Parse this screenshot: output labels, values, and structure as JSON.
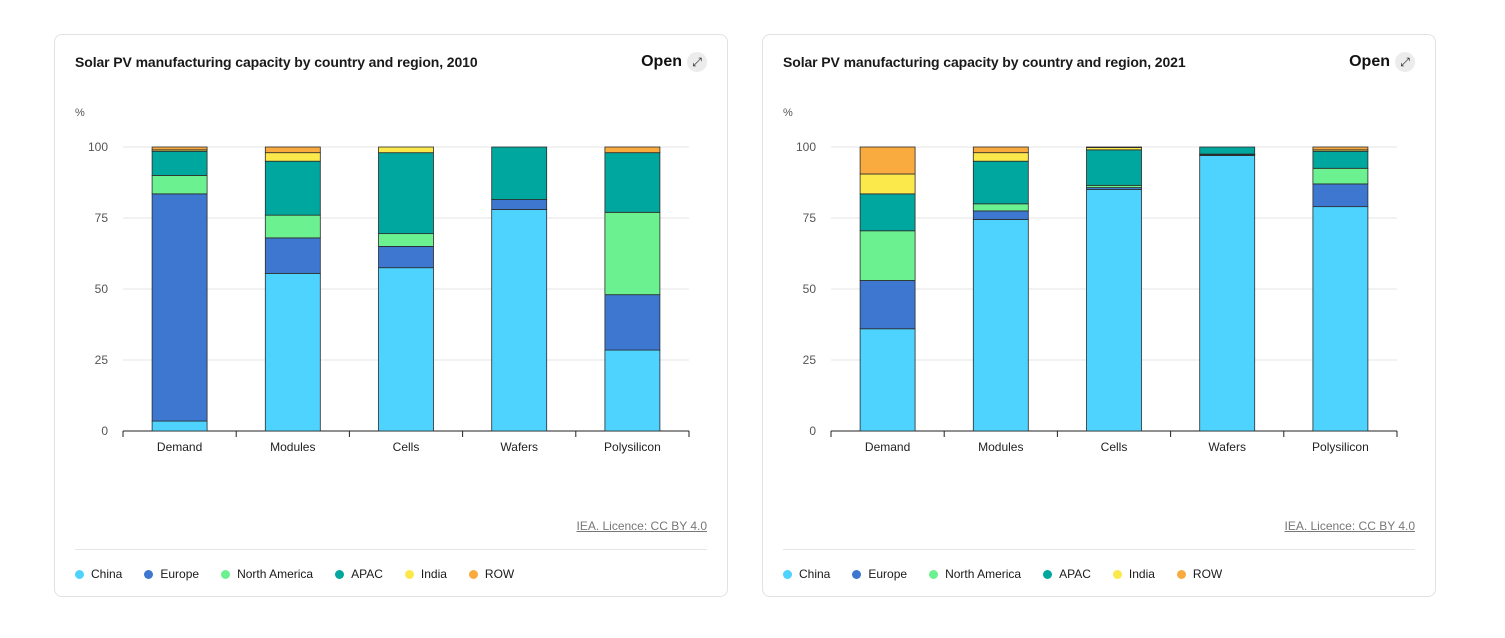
{
  "colors": {
    "China": "#4dd3fd",
    "Europe": "#3e77d0",
    "North America": "#6cf191",
    "APAC": "#00a79e",
    "India": "#fbe84b",
    "ROW": "#f9ab3f"
  },
  "open_label": "Open",
  "open_icon": "expand-arrows-icon",
  "legend": [
    "China",
    "Europe",
    "North America",
    "APAC",
    "India",
    "ROW"
  ],
  "chart_data": [
    {
      "type": "bar",
      "stacked": true,
      "title": "Solar PV manufacturing capacity by country and region, 2010",
      "ylabel": "%",
      "ylim": [
        0,
        100
      ],
      "yticks": [
        0,
        25,
        50,
        75,
        100
      ],
      "grid": true,
      "legend_position": "bottom",
      "source": "IEA. Licence: CC BY 4.0",
      "categories": [
        "Demand",
        "Modules",
        "Cells",
        "Wafers",
        "Polysilicon"
      ],
      "series": [
        {
          "name": "China",
          "values": [
            3.5,
            55.5,
            57.5,
            78,
            28.5
          ]
        },
        {
          "name": "Europe",
          "values": [
            80,
            12.5,
            7.5,
            3.5,
            19.5
          ]
        },
        {
          "name": "North America",
          "values": [
            6.5,
            8,
            4.5,
            0,
            29
          ]
        },
        {
          "name": "APAC",
          "values": [
            8.5,
            19,
            28.5,
            18.5,
            21
          ]
        },
        {
          "name": "India",
          "values": [
            0.5,
            3,
            2,
            0,
            0
          ]
        },
        {
          "name": "ROW",
          "values": [
            1,
            2,
            0,
            0,
            2
          ]
        }
      ]
    },
    {
      "type": "bar",
      "stacked": true,
      "title": "Solar PV manufacturing capacity by country and region, 2021",
      "ylabel": "%",
      "ylim": [
        0,
        100
      ],
      "yticks": [
        0,
        25,
        50,
        75,
        100
      ],
      "grid": true,
      "legend_position": "bottom",
      "source": "IEA. Licence: CC BY 4.0",
      "categories": [
        "Demand",
        "Modules",
        "Cells",
        "Wafers",
        "Polysilicon"
      ],
      "series": [
        {
          "name": "China",
          "values": [
            36,
            74.5,
            85,
            97,
            79
          ]
        },
        {
          "name": "Europe",
          "values": [
            17,
            3,
            0.7,
            0.3,
            8
          ]
        },
        {
          "name": "North America",
          "values": [
            17.5,
            2.5,
            0.8,
            0.2,
            5.5
          ]
        },
        {
          "name": "APAC",
          "values": [
            13,
            15,
            12.5,
            2.5,
            6
          ]
        },
        {
          "name": "India",
          "values": [
            7,
            3,
            0.8,
            0,
            0.5
          ]
        },
        {
          "name": "ROW",
          "values": [
            9.5,
            2,
            0.2,
            0,
            1
          ]
        }
      ]
    }
  ]
}
